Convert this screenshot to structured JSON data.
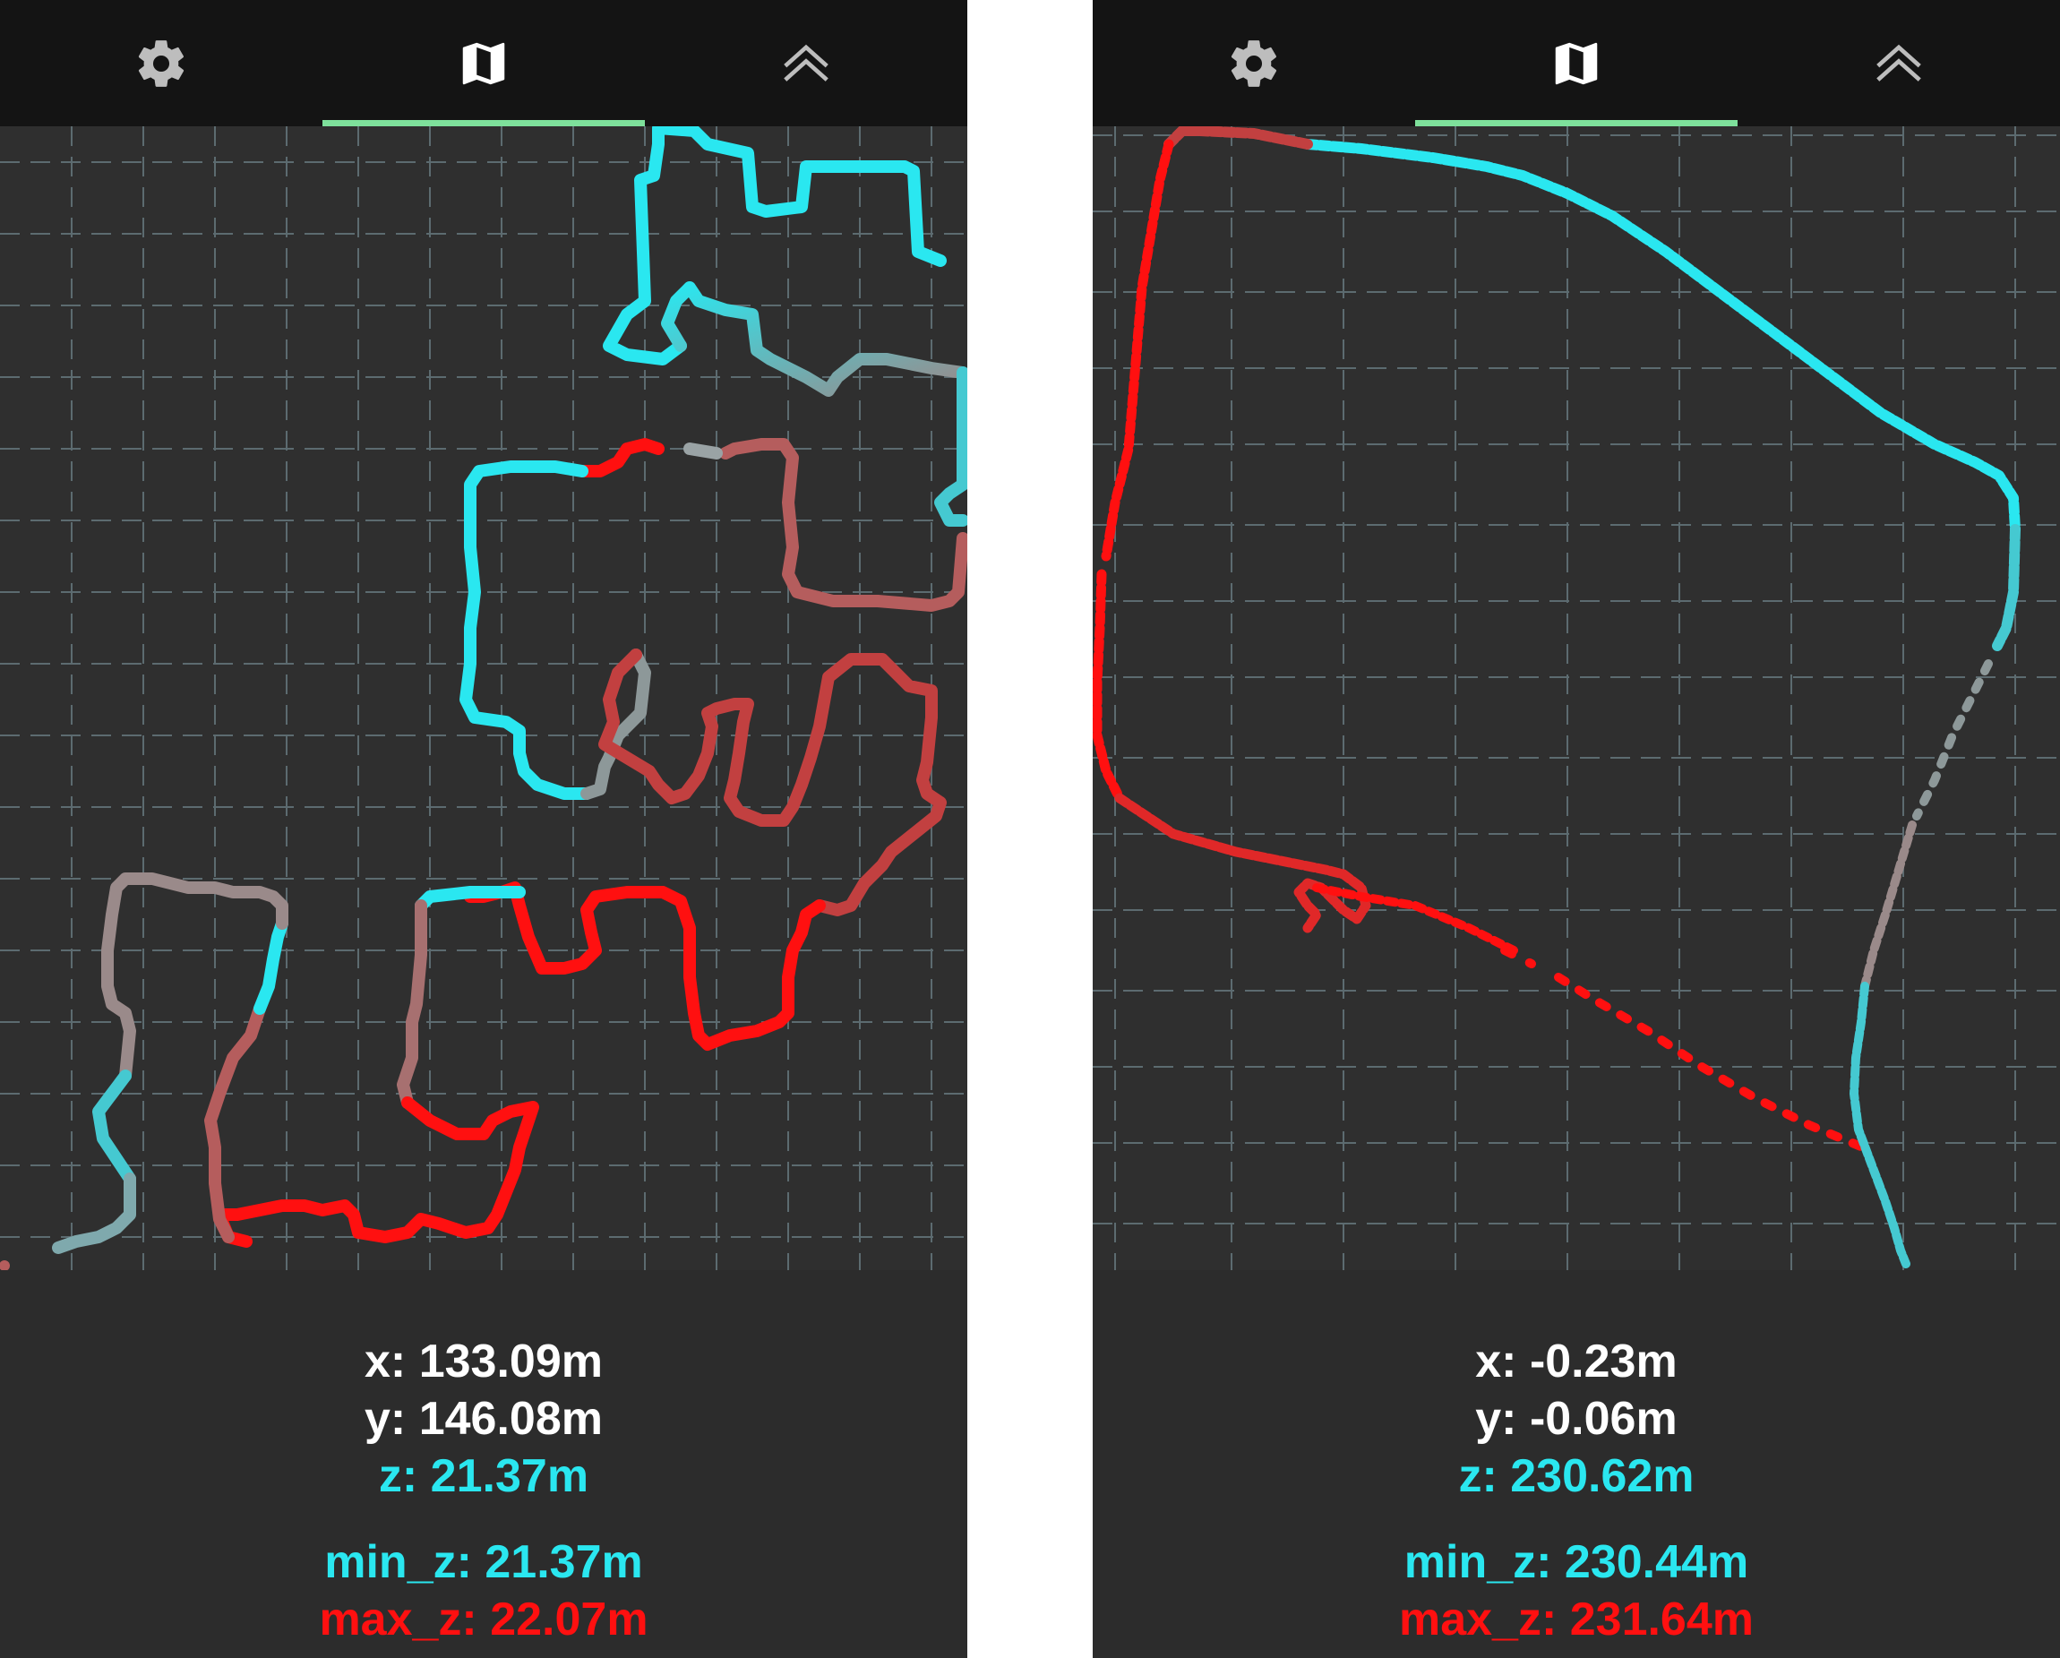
{
  "screens": [
    {
      "tabs": [
        {
          "icon": "gear-icon"
        },
        {
          "icon": "map-icon",
          "active": true
        },
        {
          "icon": "chevrons-up-icon"
        }
      ],
      "readout": {
        "x": "x: 133.09m",
        "y": "y: 146.08m",
        "z": "z: 21.37m",
        "min_z": "min_z: 21.37m",
        "max_z": "max_z: 22.07m"
      }
    },
    {
      "tabs": [
        {
          "icon": "gear-icon"
        },
        {
          "icon": "map-icon",
          "active": true
        },
        {
          "icon": "chevrons-up-icon"
        }
      ],
      "readout": {
        "x": "x: -0.23m",
        "y": "y: -0.06m",
        "z": "z: 230.62m",
        "min_z": "min_z: 230.44m",
        "max_z": "max_z: 231.64m"
      }
    }
  ],
  "colors": {
    "low_z": "#2ae7f0",
    "high_z": "#ff1010",
    "accent": "#7ee09b"
  }
}
